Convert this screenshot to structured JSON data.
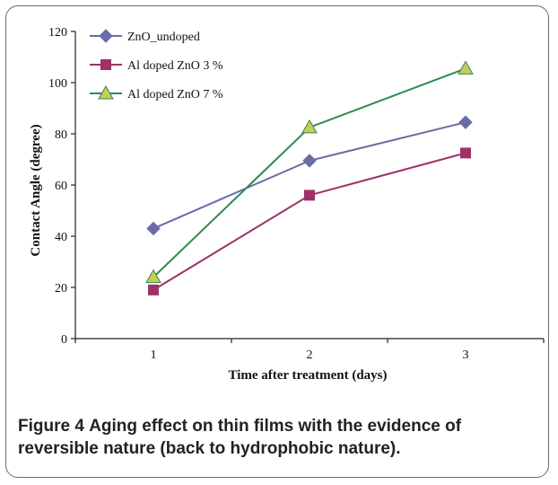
{
  "chart_data": {
    "type": "line",
    "x": [
      1,
      2,
      3
    ],
    "xlabel": "Time after treatment (days)",
    "ylabel": "Contact Angle (degree)",
    "ylim": [
      0,
      120
    ],
    "yticks": [
      0,
      20,
      40,
      60,
      80,
      100,
      120
    ],
    "xticks": [
      1,
      2,
      3
    ],
    "grid": false,
    "legend_position": "top-left",
    "series": [
      {
        "name": "ZnO_undoped",
        "values": [
          43,
          69.5,
          84.5
        ],
        "color": "#6b6ba8",
        "marker": "diamond"
      },
      {
        "name": "Al doped ZnO 3 %",
        "values": [
          19,
          56,
          72.5
        ],
        "color": "#a0306a",
        "marker": "square"
      },
      {
        "name": "Al doped ZnO 7 %",
        "values": [
          24,
          82.5,
          105.5
        ],
        "color": "#2f8a52",
        "marker": "triangle",
        "marker_fill": "#c8cc55"
      }
    ]
  },
  "caption": {
    "label": "Figure 4",
    "text": "Aging effect on thin films with the evidence of reversible nature (back to hydrophobic nature)."
  }
}
